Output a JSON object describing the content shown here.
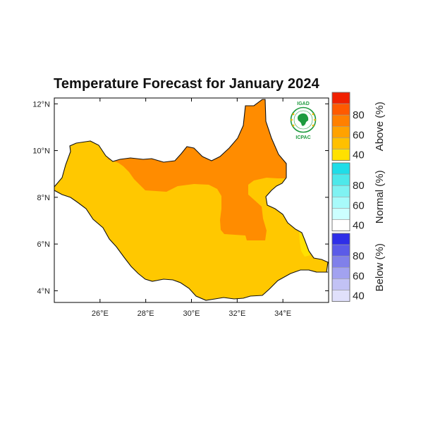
{
  "title": "Temperature Forecast for January 2024",
  "map": {
    "region": "South Sudan",
    "lon_range": [
      24.0,
      36.0
    ],
    "lat_range": [
      3.5,
      12.25
    ],
    "x_ticks": [
      "26°E",
      "28°E",
      "30°E",
      "32°E",
      "34°E"
    ],
    "y_ticks": [
      "4°N",
      "6°N",
      "8°N",
      "10°N",
      "12°N"
    ],
    "categories": [
      {
        "name": "Above (%)",
        "levels": [
          "40",
          "60",
          "80"
        ],
        "colors": [
          "#ffe100",
          "#ffc000",
          "#ffa200",
          "#ff8000",
          "#ff5a00",
          "#f02000"
        ]
      },
      {
        "name": "Normal (%)",
        "levels": [
          "40",
          "60",
          "80"
        ],
        "colors": [
          "#ffffff",
          "#ccffff",
          "#a8fafa",
          "#7ff2f2",
          "#4de8ea",
          "#1fdde8"
        ]
      },
      {
        "name": "Below (%)",
        "levels": [
          "40",
          "60",
          "80"
        ],
        "colors": [
          "#e0e0fb",
          "#c2c2f5",
          "#a2a2f0",
          "#8080ea",
          "#5b5be8",
          "#2e2ee8"
        ]
      }
    ],
    "dominant_category": "Above (%)",
    "area_colors": {
      "base": "#ffc800",
      "high": "#ff8c00",
      "low": "#ffe100"
    }
  },
  "logo": {
    "top_text": "IGAD",
    "bottom_text": "ICPAC",
    "color": "#1e9a3e"
  }
}
